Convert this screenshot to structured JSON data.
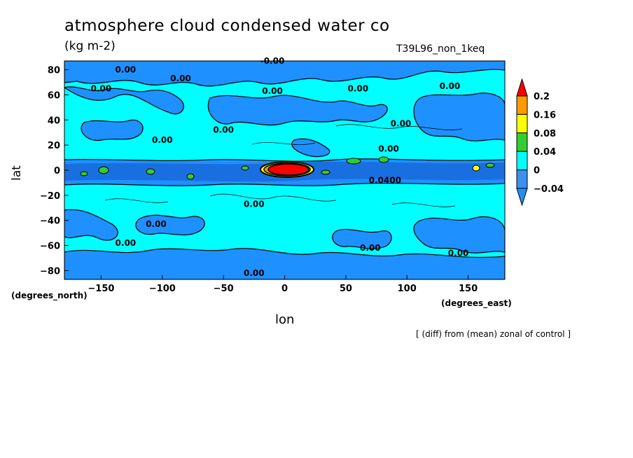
{
  "chart_data": {
    "type": "heatmap",
    "title": "atmosphere cloud condensed water co",
    "units": "(kg m-2)",
    "run_label": "T39L96_non_1keq",
    "xlabel": "lon",
    "ylabel": "lat",
    "x_units": "(degrees_east)",
    "y_units": "(degrees_north)",
    "note": "[ (diff) from (mean) zonal of control ]",
    "xlim": [
      -180,
      180
    ],
    "ylim": [
      -87,
      87
    ],
    "x_ticks": [
      -150,
      -100,
      -50,
      0,
      50,
      100,
      150
    ],
    "y_ticks": [
      80,
      60,
      40,
      20,
      0,
      -20,
      -40,
      -60,
      -80
    ],
    "colorbar": {
      "levels": [
        -0.04,
        0,
        0.04,
        0.08,
        0.16,
        0.2
      ],
      "level_labels": [
        "-0.04",
        "0",
        "0.04",
        "0.08",
        "0.16",
        "0.2"
      ],
      "colors": [
        "#1e90ff",
        "#3c90ee",
        "#00ffff",
        "#33cc33",
        "#ffff00",
        "#ff9900",
        "#ff0000"
      ],
      "color_bins": [
        "< -0.04",
        "-0.04 to 0",
        "0 to 0.04",
        "0.04 to 0.08",
        "0.08 to 0.16",
        "0.16 to 0.2",
        "> 0.2"
      ]
    },
    "contour_labels": [
      {
        "text": "0.00",
        "lon": -130,
        "lat": 80
      },
      {
        "text": "0.00",
        "lon": -150,
        "lat": 65
      },
      {
        "text": "0.00",
        "lon": -85,
        "lat": 73
      },
      {
        "text": "-0.00",
        "lon": -10,
        "lat": 87
      },
      {
        "text": "0.00",
        "lon": -10,
        "lat": 63
      },
      {
        "text": "0.00",
        "lon": 60,
        "lat": 65
      },
      {
        "text": "0.00",
        "lon": 135,
        "lat": 67
      },
      {
        "text": "0.00",
        "lon": -50,
        "lat": 32
      },
      {
        "text": "0.00",
        "lon": -100,
        "lat": 24
      },
      {
        "text": "0.00",
        "lon": 95,
        "lat": 37
      },
      {
        "text": "0.00",
        "lon": 85,
        "lat": 17
      },
      {
        "text": "0.0400",
        "lon": 82,
        "lat": -8
      },
      {
        "text": "0.00",
        "lon": -25,
        "lat": -27
      },
      {
        "text": "0.00",
        "lon": -105,
        "lat": -43
      },
      {
        "text": "0.00",
        "lon": -130,
        "lat": -58
      },
      {
        "text": "0.00",
        "lon": 70,
        "lat": -62
      },
      {
        "text": "0.00",
        "lon": 142,
        "lat": -66
      },
      {
        "text": "0.00",
        "lon": -25,
        "lat": -82
      }
    ]
  }
}
